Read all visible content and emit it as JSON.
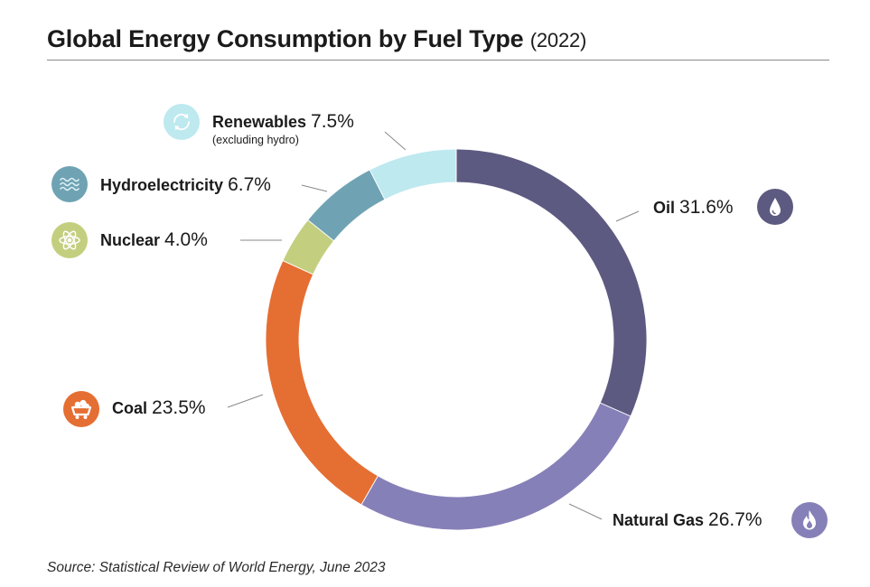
{
  "title": {
    "main": "Global Energy Consumption by Fuel Type",
    "year": "(2022)"
  },
  "source": "Source: Statistical Review of World Energy, June 2023",
  "chart_data": {
    "type": "pie",
    "title": "Global Energy Consumption by Fuel Type (2022)",
    "unit": "%",
    "slices": [
      {
        "label": "Oil",
        "value": 31.6,
        "value_label": "31.6%",
        "color": "#5d5a81",
        "icon": "oil-drop-icon"
      },
      {
        "label": "Natural Gas",
        "value": 26.7,
        "value_label": "26.7%",
        "color": "#8680b8",
        "icon": "gas-flame-icon"
      },
      {
        "label": "Coal",
        "value": 23.5,
        "value_label": "23.5%",
        "color": "#e56e33",
        "icon": "coal-cart-icon"
      },
      {
        "label": "Nuclear",
        "value": 4.0,
        "value_label": "4.0%",
        "color": "#c3cf7e",
        "icon": "atom-icon"
      },
      {
        "label": "Hydroelectricity",
        "value": 6.7,
        "value_label": "6.7%",
        "color": "#6fa3b3",
        "icon": "water-waves-icon"
      },
      {
        "label": "Renewables",
        "value": 7.5,
        "value_label": "7.5%",
        "note": "(excluding hydro)",
        "color": "#bde9ef",
        "icon": "recycle-arrows-icon"
      }
    ],
    "legend": "labels placed around ring with leader lines"
  }
}
